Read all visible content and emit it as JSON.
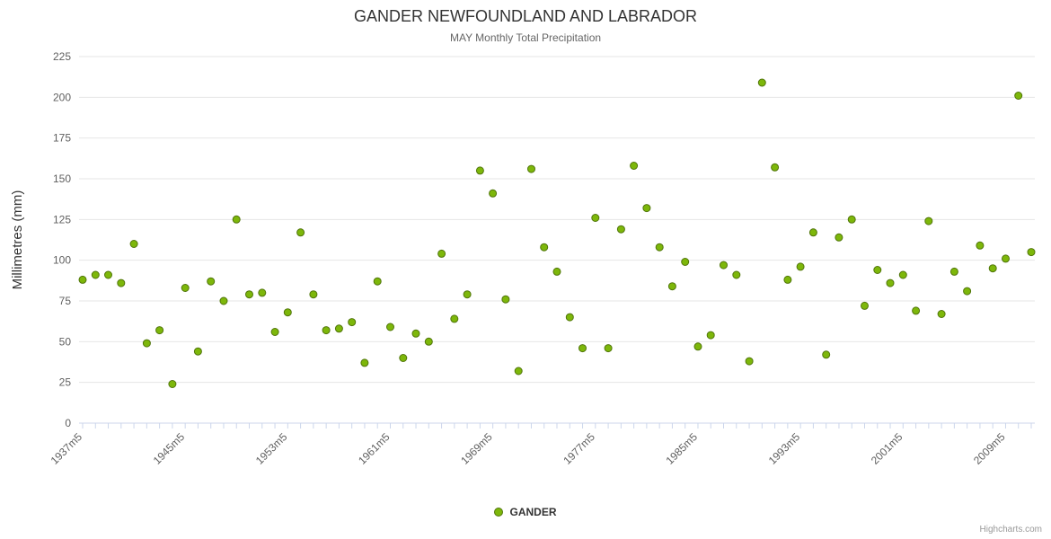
{
  "chart": {
    "title": "GANDER NEWFOUNDLAND AND LABRADOR",
    "subtitle": "MAY Monthly Total Precipitation",
    "y_axis_title": "Millimetres (mm)",
    "legend_label": "GANDER",
    "credits": "Highcharts.com"
  },
  "chart_data": {
    "type": "scatter",
    "title": "GANDER NEWFOUNDLAND AND LABRADOR",
    "subtitle": "MAY Monthly Total Precipitation",
    "ylabel": "Millimetres (mm)",
    "ylim": [
      0,
      225
    ],
    "y_tick_interval": 25,
    "grid": true,
    "legend_position": "bottom-center",
    "x_start": 1937,
    "x_labeled_ticks": [
      "1937m5",
      "1945m5",
      "1953m5",
      "1961m5",
      "1969m5",
      "1977m5",
      "1985m5",
      "1993m5",
      "2001m5",
      "2009m5"
    ],
    "x_label_suffix": "m5",
    "series": [
      {
        "name": "GANDER",
        "marker_fill": "#7db70a",
        "marker_stroke": "#50750a",
        "values": [
          88,
          91,
          91,
          86,
          110,
          49,
          57,
          24,
          83,
          44,
          87,
          75,
          125,
          79,
          80,
          56,
          68,
          117,
          79,
          57,
          58,
          62,
          37,
          87,
          59,
          40,
          55,
          50,
          104,
          64,
          79,
          155,
          141,
          76,
          32,
          156,
          108,
          93,
          65,
          46,
          126,
          46,
          119,
          158,
          132,
          108,
          84,
          99,
          47,
          54,
          97,
          91,
          38,
          209,
          157,
          88,
          96,
          117,
          42,
          114,
          125,
          72,
          94,
          86,
          91,
          69,
          124,
          67,
          93,
          81,
          109,
          95,
          101,
          201,
          105
        ]
      }
    ],
    "colors": {
      "gridline": "#e6e6e6",
      "axis_line": "#ccd6eb",
      "tick": "#ccd6eb",
      "title": "#333333",
      "subtitle": "#666666",
      "labels": "#606060"
    }
  }
}
